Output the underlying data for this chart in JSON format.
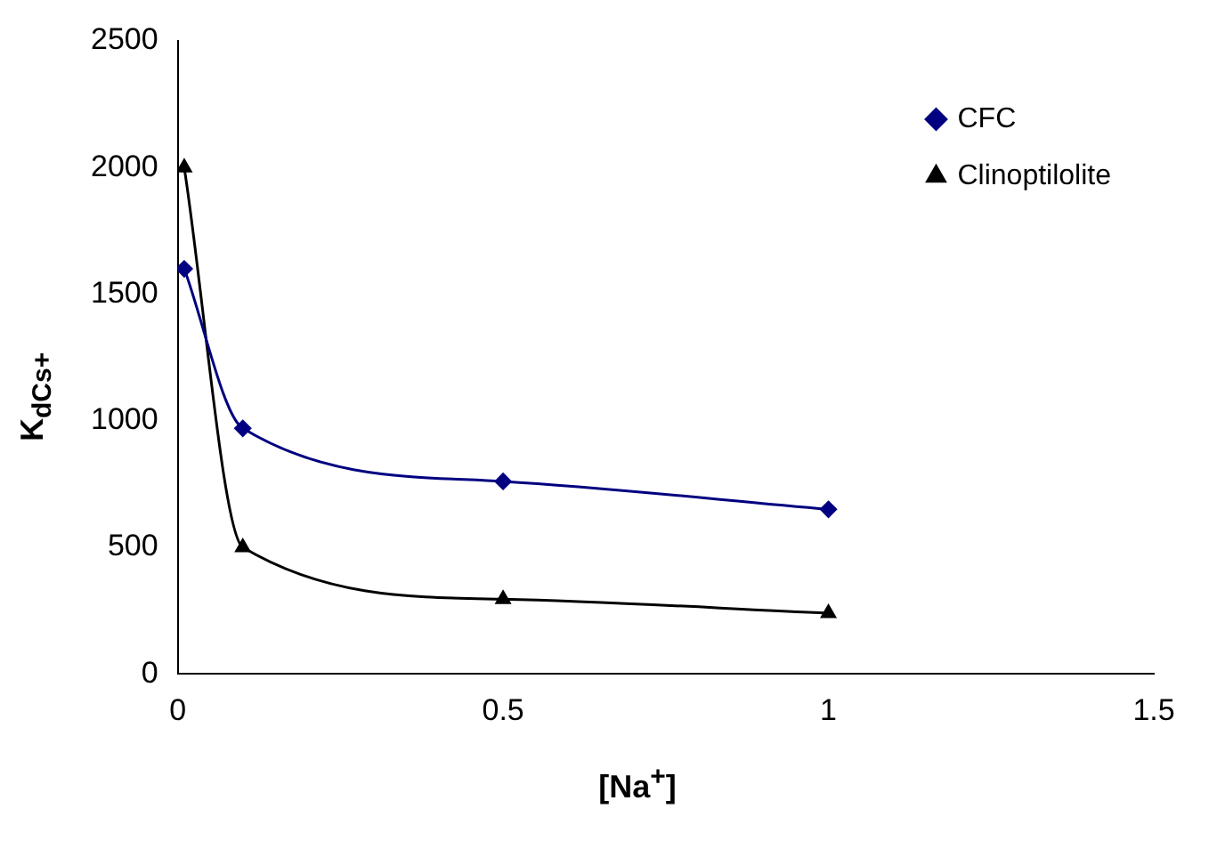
{
  "chart_data": {
    "type": "line",
    "xlabel": "[Na$^{+}$]",
    "ylabel": "K$_{dCs+}$",
    "xlim": [
      0,
      1.5
    ],
    "xticks": [
      0,
      0.5,
      1,
      1.5
    ],
    "ylim": [
      0,
      2500
    ],
    "yticks": [
      0,
      500,
      1000,
      1500,
      2000,
      2500
    ],
    "grid": false,
    "legend": "top right",
    "line_style": "solid",
    "series": [
      {
        "name": "CFC",
        "color": "#000080",
        "marker": "diamond",
        "x": [
          0.01,
          0.1,
          0.5,
          1
        ],
        "values": [
          1600,
          970,
          760,
          650
        ]
      },
      {
        "name": "Clinoptilolite",
        "color": "#000000",
        "marker": "triangle",
        "x": [
          0.01,
          0.1,
          0.5,
          1
        ],
        "values": [
          2000,
          500,
          295,
          240
        ]
      }
    ]
  }
}
